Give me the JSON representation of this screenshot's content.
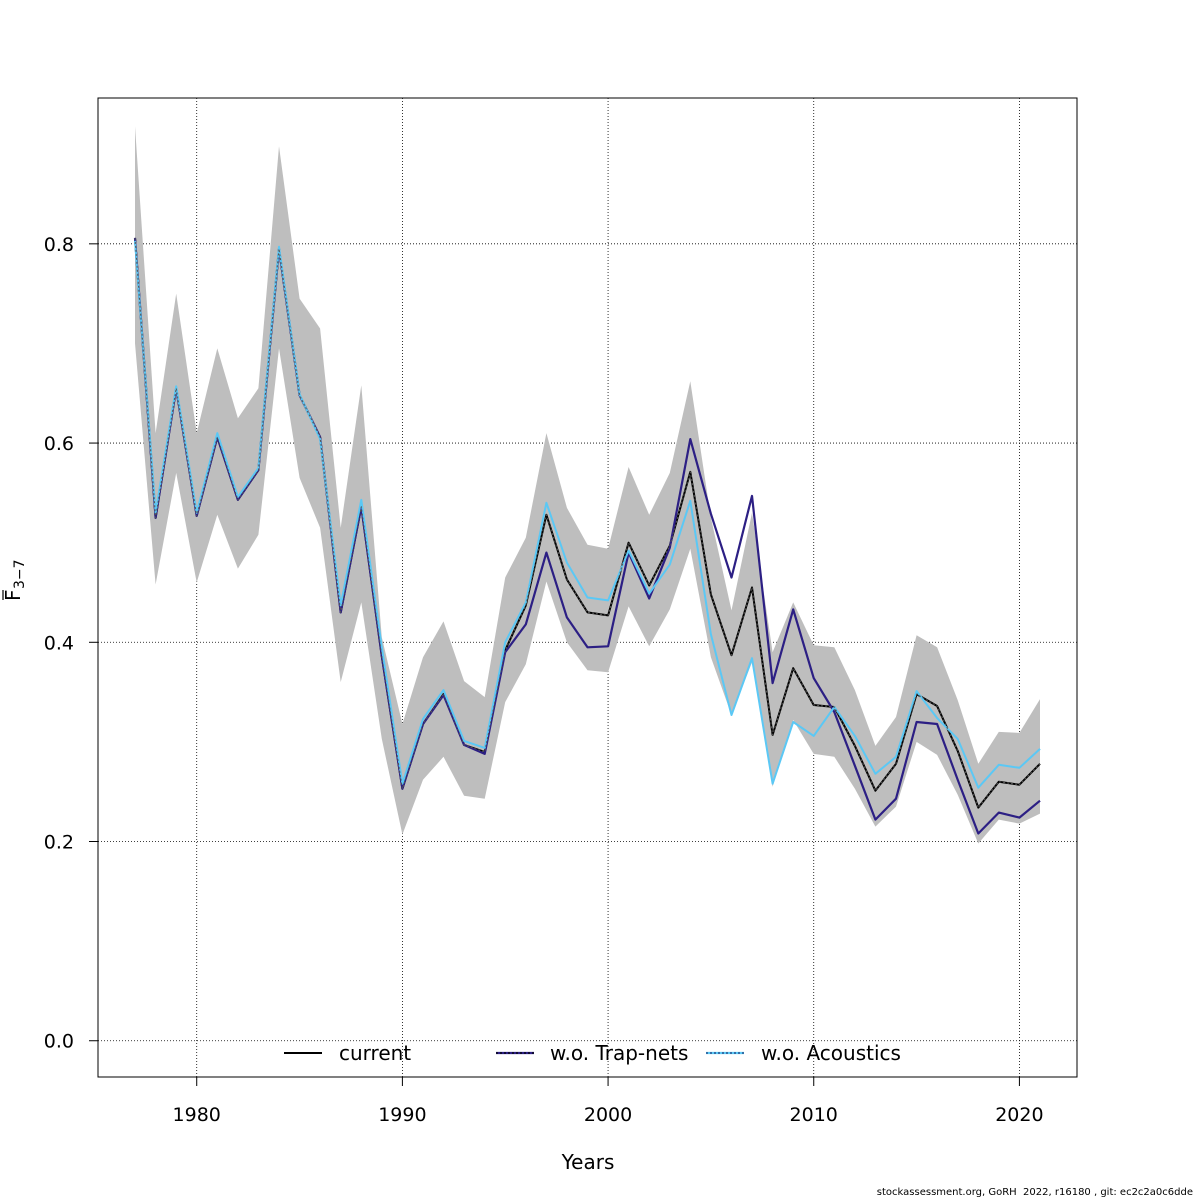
{
  "footer": "stockassessment.org, GoRH  2022, r16180 , git: ec2c2a0c6dde",
  "chart_data": {
    "type": "line",
    "title": "",
    "xlabel": "Years",
    "ylabel_main": "F",
    "ylabel_sub": "3−7",
    "xlim": [
      1975.2,
      2022.8
    ],
    "ylim": [
      -0.0364,
      0.9464
    ],
    "xticks": [
      1980,
      1990,
      2000,
      2010,
      2020
    ],
    "xtick_labels": [
      "1980",
      "1990",
      "2000",
      "2010",
      "2020"
    ],
    "yticks": [
      0.0,
      0.2,
      0.4,
      0.6,
      0.8
    ],
    "ytick_labels": [
      "0.0",
      "0.2",
      "0.4",
      "0.6",
      "0.8"
    ],
    "grid": true,
    "legend_position": "bottom",
    "colors": {
      "band": "#bebebe",
      "current": "#000000",
      "trap_nets": "#2c1f84",
      "acoustics": "#5bc8f5",
      "grid": "#000000"
    },
    "x": [
      1977,
      1978,
      1979,
      1980,
      1981,
      1982,
      1983,
      1984,
      1985,
      1986,
      1987,
      1988,
      1989,
      1990,
      1991,
      1992,
      1993,
      1994,
      1995,
      1996,
      1997,
      1998,
      1999,
      2000,
      2001,
      2002,
      2003,
      2004,
      2005,
      2006,
      2007,
      2008,
      2009,
      2010,
      2011,
      2012,
      2013,
      2014,
      2015,
      2016,
      2017,
      2018,
      2019,
      2020,
      2021
    ],
    "band_upper": [
      0.918,
      0.61,
      0.75,
      0.61,
      0.695,
      0.625,
      0.655,
      0.898,
      0.745,
      0.715,
      0.515,
      0.658,
      0.405,
      0.318,
      0.385,
      0.421,
      0.361,
      0.345,
      0.465,
      0.505,
      0.61,
      0.535,
      0.498,
      0.494,
      0.576,
      0.528,
      0.57,
      0.662,
      0.525,
      0.432,
      0.53,
      0.39,
      0.44,
      0.397,
      0.395,
      0.352,
      0.296,
      0.325,
      0.407,
      0.395,
      0.342,
      0.278,
      0.31,
      0.309,
      0.343
    ],
    "band_lower": [
      0.7,
      0.458,
      0.57,
      0.46,
      0.528,
      0.474,
      0.508,
      0.695,
      0.565,
      0.515,
      0.36,
      0.44,
      0.303,
      0.207,
      0.262,
      0.285,
      0.246,
      0.243,
      0.34,
      0.378,
      0.461,
      0.4,
      0.372,
      0.37,
      0.436,
      0.396,
      0.433,
      0.494,
      0.385,
      0.327,
      0.38,
      0.255,
      0.322,
      0.288,
      0.285,
      0.253,
      0.215,
      0.235,
      0.3,
      0.287,
      0.247,
      0.198,
      0.222,
      0.218,
      0.228
    ],
    "series": [
      {
        "name": "current",
        "values": [
          0.806,
          0.525,
          0.655,
          0.527,
          0.606,
          0.543,
          0.573,
          0.795,
          0.648,
          0.606,
          0.43,
          0.536,
          0.386,
          0.253,
          0.318,
          0.348,
          0.297,
          0.29,
          0.392,
          0.437,
          0.528,
          0.463,
          0.43,
          0.427,
          0.5,
          0.457,
          0.497,
          0.571,
          0.448,
          0.387,
          0.455,
          0.307,
          0.374,
          0.337,
          0.335,
          0.296,
          0.251,
          0.278,
          0.348,
          0.336,
          0.291,
          0.234,
          0.26,
          0.257,
          0.278
        ]
      },
      {
        "name": "w.o. Trap-nets",
        "values": [
          0.806,
          0.525,
          0.655,
          0.527,
          0.606,
          0.543,
          0.573,
          0.795,
          0.648,
          0.606,
          0.43,
          0.536,
          0.386,
          0.253,
          0.318,
          0.347,
          0.297,
          0.288,
          0.39,
          0.418,
          0.49,
          0.425,
          0.395,
          0.396,
          0.49,
          0.444,
          0.495,
          0.604,
          0.529,
          0.465,
          0.547,
          0.359,
          0.433,
          0.364,
          0.33,
          0.276,
          0.222,
          0.243,
          0.32,
          0.318,
          0.262,
          0.208,
          0.229,
          0.224,
          0.241
        ]
      },
      {
        "name": "w.o. Acoustics",
        "values": [
          0.803,
          0.53,
          0.657,
          0.53,
          0.61,
          0.546,
          0.575,
          0.797,
          0.649,
          0.604,
          0.437,
          0.543,
          0.395,
          0.258,
          0.323,
          0.352,
          0.301,
          0.294,
          0.4,
          0.44,
          0.54,
          0.48,
          0.445,
          0.442,
          0.492,
          0.449,
          0.478,
          0.542,
          0.408,
          0.327,
          0.384,
          0.258,
          0.32,
          0.306,
          0.335,
          0.306,
          0.268,
          0.285,
          0.351,
          0.324,
          0.303,
          0.254,
          0.277,
          0.274,
          0.293
        ]
      }
    ]
  }
}
